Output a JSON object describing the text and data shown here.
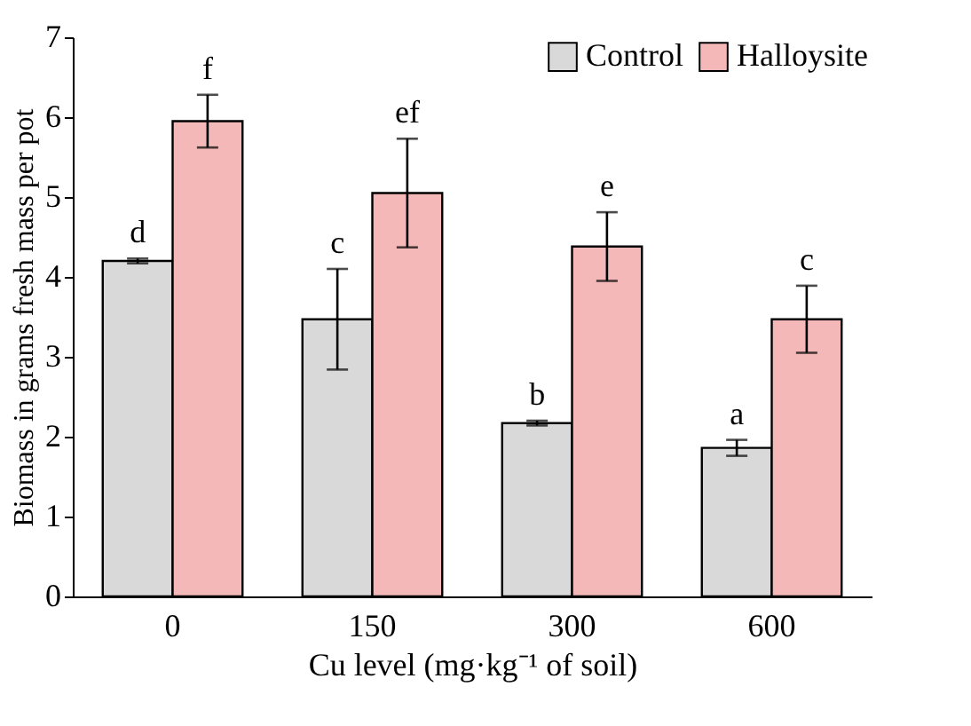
{
  "chart_data": {
    "type": "bar",
    "xlabel": "Cu level (mg·kg⁻¹ of soil)",
    "ylabel": "Biomass in grams fresh mass per pot",
    "categories": [
      "0",
      "150",
      "300",
      "600"
    ],
    "series": [
      {
        "name": "Control",
        "color": "#d9d9d9",
        "values": [
          4.2,
          3.47,
          2.17,
          1.86
        ],
        "errors": [
          0.03,
          0.63,
          0.03,
          0.1
        ]
      },
      {
        "name": "Halloysite",
        "color": "#f4b8b8",
        "values": [
          5.95,
          5.05,
          4.38,
          3.47
        ],
        "errors": [
          0.33,
          0.68,
          0.43,
          0.42
        ]
      }
    ],
    "ylim": [
      0,
      7
    ],
    "yticks": [
      0,
      1,
      2,
      3,
      4,
      5,
      6,
      7
    ],
    "grid": false,
    "legend": "top right",
    "annotations": [
      "d",
      "f",
      "c",
      "ef",
      "b",
      "e",
      "a",
      "c"
    ]
  }
}
